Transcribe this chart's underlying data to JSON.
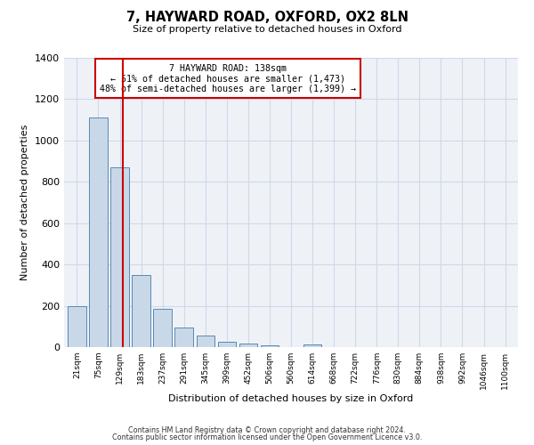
{
  "title": "7, HAYWARD ROAD, OXFORD, OX2 8LN",
  "subtitle": "Size of property relative to detached houses in Oxford",
  "xlabel": "Distribution of detached houses by size in Oxford",
  "ylabel": "Number of detached properties",
  "bar_color": "#c8d8e8",
  "bar_edge_color": "#5a8ab0",
  "annotation_box_edge": "#cc0000",
  "vertical_line_color": "#cc0000",
  "grid_color": "#d0d8e8",
  "background_color": "#eef2f7",
  "categories": [
    "21sqm",
    "75sqm",
    "129sqm",
    "183sqm",
    "237sqm",
    "291sqm",
    "345sqm",
    "399sqm",
    "452sqm",
    "506sqm",
    "560sqm",
    "614sqm",
    "668sqm",
    "722sqm",
    "776sqm",
    "830sqm",
    "884sqm",
    "938sqm",
    "992sqm",
    "1046sqm",
    "1100sqm"
  ],
  "bar_heights": [
    200,
    1110,
    870,
    350,
    185,
    95,
    55,
    25,
    18,
    10,
    0,
    12,
    0,
    0,
    0,
    0,
    0,
    0,
    0,
    0,
    0
  ],
  "property_label": "7 HAYWARD ROAD: 138sqm",
  "annotation_line1": "← 51% of detached houses are smaller (1,473)",
  "annotation_line2": "48% of semi-detached houses are larger (1,399) →",
  "vline_x_index": 2.15,
  "ylim": [
    0,
    1400
  ],
  "yticks": [
    0,
    200,
    400,
    600,
    800,
    1000,
    1200,
    1400
  ],
  "footer1": "Contains HM Land Registry data © Crown copyright and database right 2024.",
  "footer2": "Contains public sector information licensed under the Open Government Licence v3.0."
}
